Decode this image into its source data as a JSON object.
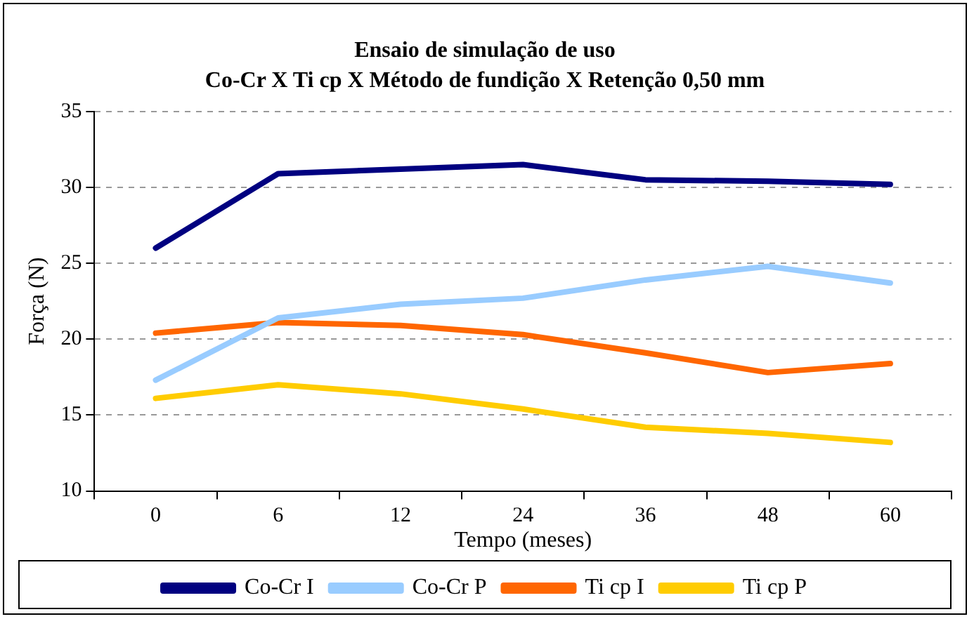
{
  "chart_data": {
    "type": "line",
    "title": "Ensaio de simulação de uso",
    "subtitle": "Co-Cr X Ti cp X Método de fundição X Retenção 0,50 mm",
    "xlabel": "Tempo (meses)",
    "ylabel": "Força (N)",
    "categories": [
      "0",
      "6",
      "12",
      "24",
      "36",
      "48",
      "60"
    ],
    "series": [
      {
        "name": "Co-Cr I",
        "color": "#000080",
        "values": [
          26.0,
          30.9,
          31.2,
          31.5,
          30.5,
          30.4,
          30.2
        ]
      },
      {
        "name": "Co-Cr P",
        "color": "#99ccff",
        "values": [
          17.3,
          21.4,
          22.3,
          22.7,
          23.9,
          24.8,
          23.7
        ]
      },
      {
        "name": "Ti cp I",
        "color": "#ff6600",
        "values": [
          20.4,
          21.1,
          20.9,
          20.3,
          19.1,
          17.8,
          18.4
        ]
      },
      {
        "name": "Ti cp P",
        "color": "#ffcc00",
        "values": [
          16.1,
          17.0,
          16.4,
          15.4,
          14.2,
          13.8,
          13.2
        ]
      }
    ],
    "ylim": [
      10,
      35
    ],
    "yticks": [
      10,
      15,
      20,
      25,
      30,
      35
    ],
    "grid": "y",
    "legend": "bottom",
    "marker": "none",
    "line_style": "solid"
  }
}
